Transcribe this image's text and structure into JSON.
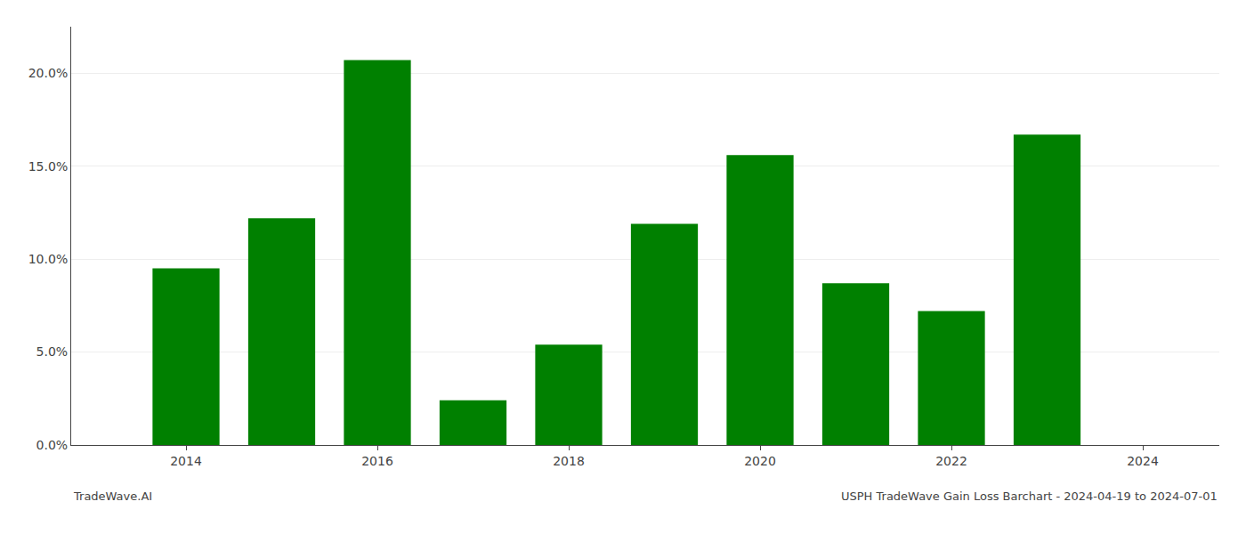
{
  "chart_data": {
    "type": "bar",
    "x": [
      2014,
      2015,
      2016,
      2017,
      2018,
      2019,
      2020,
      2021,
      2022,
      2023
    ],
    "values": [
      0.095,
      0.122,
      0.207,
      0.024,
      0.054,
      0.119,
      0.156,
      0.087,
      0.072,
      0.167
    ],
    "color": "#008000",
    "xlim": [
      2012.8,
      2024.8
    ],
    "xticks": [
      2014,
      2016,
      2018,
      2020,
      2022,
      2024
    ],
    "ylim": [
      0,
      0.225
    ],
    "yticks": [
      {
        "value": 0.0,
        "label": "0.0%"
      },
      {
        "value": 0.05,
        "label": "5.0%"
      },
      {
        "value": 0.1,
        "label": "10.0%"
      },
      {
        "value": 0.15,
        "label": "15.0%"
      },
      {
        "value": 0.2,
        "label": "20.0%"
      }
    ],
    "grid": true,
    "annotations": [
      "TradeWave.AI",
      "USPH TradeWave Gain Loss Barchart - 2024-04-19 to 2024-07-01"
    ]
  }
}
